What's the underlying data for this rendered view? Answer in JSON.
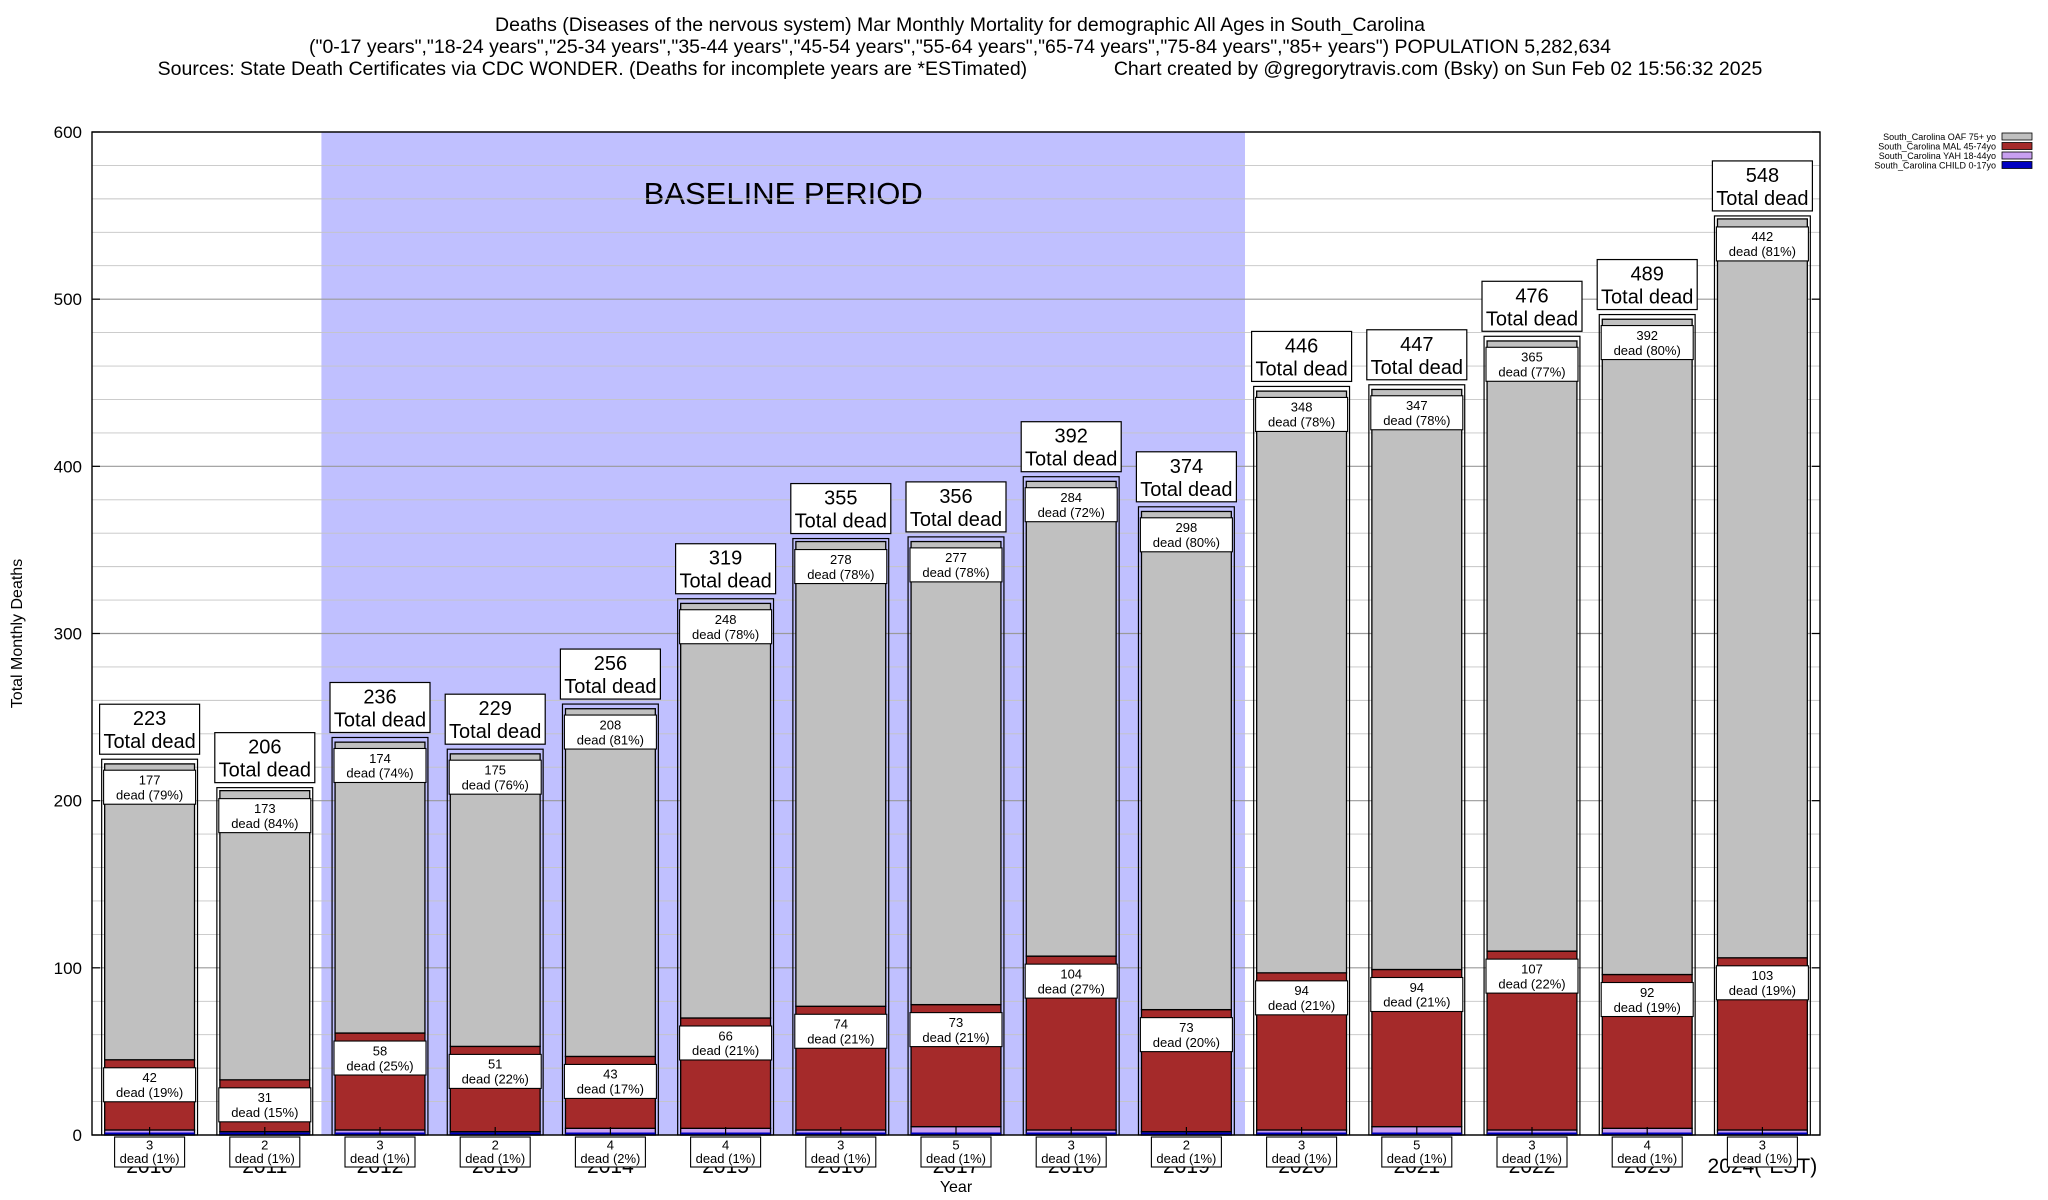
{
  "header": {
    "title_line1": "Deaths (Diseases of the nervous system) Mar Monthly Mortality for demographic All Ages in South_Carolina",
    "title_line2": "(\"0-17 years\",\"18-24 years\",\"25-34 years\",\"35-44 years\",\"45-54 years\",\"55-64 years\",\"65-74 years\",\"75-84 years\",\"85+ years\") POPULATION 5,282,634",
    "title_line3": "Sources: State Death Certificates via CDC WONDER. (Deaths for incomplete years are *ESTimated)                Chart created by @gregorytravis.com (Bsky) on Sun Feb 02 15:56:32 2025"
  },
  "colors": {
    "oaf": "#c0c0c0",
    "mal": "#a52a2a",
    "yah": "#c8a0f0",
    "child": "#0000c0",
    "baseline": "#c0c0ff"
  },
  "chart_data": {
    "type": "bar",
    "stacked": true,
    "xlabel": "Year",
    "ylabel": "Total Monthly Deaths",
    "ylim": [
      0,
      600
    ],
    "yticks": [
      0,
      100,
      200,
      300,
      400,
      500,
      600
    ],
    "grid": true,
    "legend_position": "top-right",
    "annotation": {
      "text": "BASELINE PERIOD",
      "from": "2012",
      "to": "2019"
    },
    "total_label": "Total dead",
    "dead_prefix": "dead",
    "categories": [
      "2010",
      "2011",
      "2012",
      "2013",
      "2014",
      "2015",
      "2016",
      "2017",
      "2018",
      "2019",
      "2020",
      "2021",
      "2022",
      "2023",
      "2024(*EST)"
    ],
    "totals": [
      223,
      206,
      236,
      229,
      256,
      319,
      355,
      356,
      392,
      374,
      446,
      447,
      476,
      489,
      548
    ],
    "series": [
      {
        "key": "child",
        "name": "South_Carolina CHILD 0-17yo",
        "values": [
          0,
          0,
          0,
          0,
          0,
          0,
          0,
          0,
          0,
          0,
          0,
          0,
          0,
          0,
          0
        ]
      },
      {
        "key": "yah",
        "name": "South_Carolina YAH 18-44yo",
        "values": [
          3,
          2,
          3,
          2,
          4,
          4,
          3,
          5,
          3,
          2,
          3,
          5,
          3,
          4,
          3
        ],
        "pct": [
          "1%",
          "1%",
          "1%",
          "1%",
          "2%",
          "1%",
          "1%",
          "1%",
          "1%",
          "1%",
          "1%",
          "1%",
          "1%",
          "1%",
          "1%"
        ]
      },
      {
        "key": "mal",
        "name": "South_Carolina MAL 45-74yo",
        "values": [
          42,
          31,
          58,
          51,
          43,
          66,
          74,
          73,
          104,
          73,
          94,
          94,
          107,
          92,
          103
        ],
        "pct": [
          "19%",
          "15%",
          "25%",
          "22%",
          "17%",
          "21%",
          "21%",
          "21%",
          "27%",
          "20%",
          "21%",
          "21%",
          "22%",
          "19%",
          "19%"
        ]
      },
      {
        "key": "oaf",
        "name": "South_Carolina OAF 75+ yo",
        "values": [
          177,
          173,
          174,
          175,
          208,
          248,
          278,
          277,
          284,
          298,
          348,
          347,
          365,
          392,
          442
        ],
        "pct": [
          "79%",
          "84%",
          "74%",
          "76%",
          "81%",
          "78%",
          "78%",
          "78%",
          "72%",
          "80%",
          "78%",
          "78%",
          "77%",
          "80%",
          "81%"
        ]
      }
    ]
  }
}
